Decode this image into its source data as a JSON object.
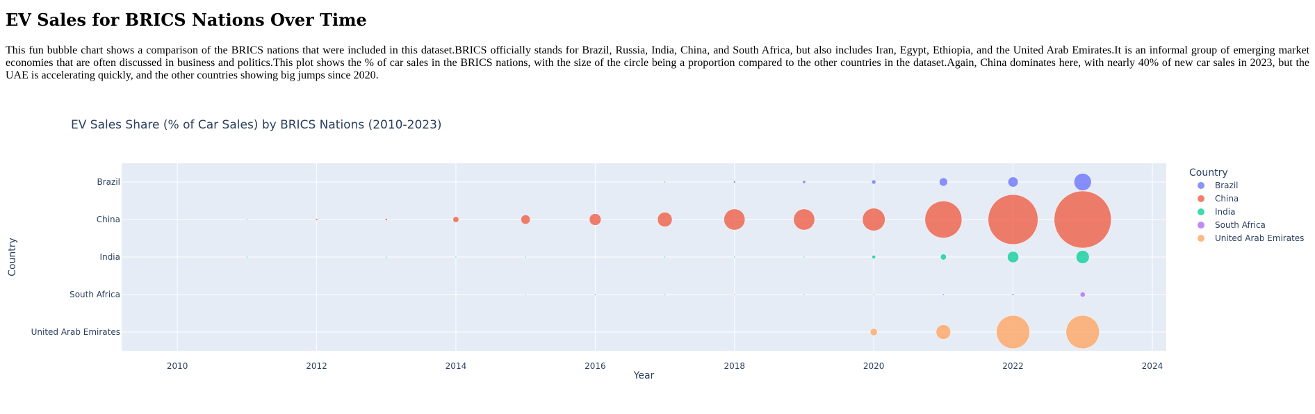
{
  "page": {
    "title": "EV Sales for BRICS Nations Over Time",
    "description": "This fun bubble chart shows a comparison of the BRICS nations that were included in this dataset.BRICS officially stands for Brazil, Russia, India, China, and South Africa, but also includes Iran, Egypt, Ethiopia, and the United Arab Emirates.It is an informal group of emerging market economies that are often discussed in business and politics.This plot shows the % of car sales in the BRICS nations, with the size of the circle being a proportion compared to the other countries in the dataset.Again, China dominates here, with nearly 40% of new car sales in 2023, but the UAE is accelerating quickly, and the other countries showing big jumps since 2020."
  },
  "chart_data": {
    "type": "scatter",
    "title": "EV Sales Share (% of Car Sales) by BRICS Nations (2010-2023)",
    "xlabel": "Year",
    "ylabel": "Country",
    "xlim": [
      2009.2,
      2024.2
    ],
    "x_ticks": [
      2010,
      2012,
      2014,
      2016,
      2018,
      2020,
      2022,
      2024
    ],
    "categories": [
      "Brazil",
      "China",
      "India",
      "South Africa",
      "United Arab Emirates"
    ],
    "legend_title": "Country",
    "legend_position": "right",
    "grid": true,
    "series": [
      {
        "name": "Brazil",
        "color": "#636efa",
        "x": [
          2017,
          2018,
          2019,
          2020,
          2021,
          2022,
          2023
        ],
        "values": [
          0.02,
          0.05,
          0.1,
          0.2,
          0.8,
          1.2,
          3.5
        ]
      },
      {
        "name": "China",
        "color": "#ef553b",
        "x": [
          2011,
          2012,
          2013,
          2014,
          2015,
          2016,
          2017,
          2018,
          2019,
          2020,
          2021,
          2022,
          2023
        ],
        "values": [
          0.02,
          0.05,
          0.06,
          0.4,
          1.0,
          1.6,
          2.5,
          5.2,
          5.2,
          6.0,
          16,
          29,
          38
        ]
      },
      {
        "name": "India",
        "color": "#00cc96",
        "x": [
          2011,
          2013,
          2014,
          2015,
          2017,
          2018,
          2019,
          2020,
          2021,
          2022,
          2023
        ],
        "values": [
          0.02,
          0.01,
          0.01,
          0.01,
          0.02,
          0.02,
          0.02,
          0.15,
          0.4,
          1.5,
          2.0
        ]
      },
      {
        "name": "South Africa",
        "color": "#ab63fa",
        "x": [
          2015,
          2016,
          2017,
          2018,
          2019,
          2020,
          2021,
          2022,
          2023
        ],
        "values": [
          0.01,
          0.03,
          0.01,
          0.01,
          0.01,
          0.02,
          0.03,
          0.05,
          0.3
        ]
      },
      {
        "name": "United Arab Emirates",
        "color": "#ffa15a",
        "x": [
          2020,
          2021,
          2022,
          2023
        ],
        "values": [
          0.6,
          2.5,
          13,
          13
        ]
      }
    ]
  }
}
